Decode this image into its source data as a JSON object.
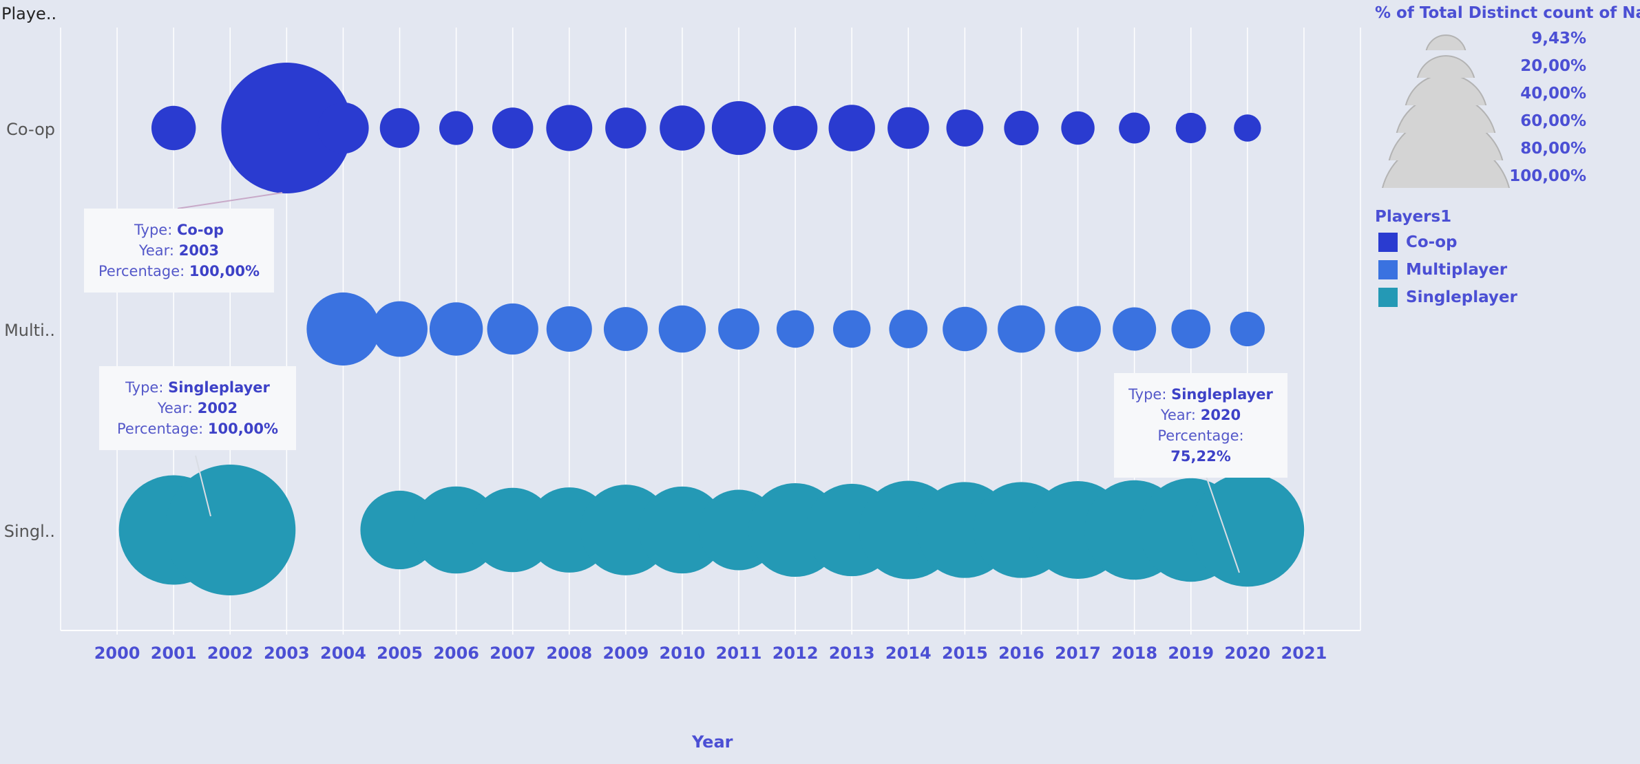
{
  "colors": {
    "background": "#e3e7f1",
    "coop": "#2a3bd0",
    "multiplayer": "#3a72e0",
    "singleplayer": "#2499b5",
    "axis_text": "#4b4fd4",
    "size_legend_fill": "#d4d4d4"
  },
  "header": {
    "row_title": "Playe.."
  },
  "chart_data": {
    "type": "scatter",
    "x_label": "Year",
    "x_ticks": [
      2000,
      2001,
      2002,
      2003,
      2004,
      2005,
      2006,
      2007,
      2008,
      2009,
      2010,
      2011,
      2012,
      2013,
      2014,
      2015,
      2016,
      2017,
      2018,
      2019,
      2020,
      2021
    ],
    "xlim": [
      1999,
      2022
    ],
    "rows": [
      "Co-op",
      "Multi..",
      "Singl.."
    ],
    "size_measure": "% of Total Distinct count of Name",
    "series": [
      {
        "name": "Co-op",
        "points": [
          {
            "year": 2001,
            "pct": 11.5
          },
          {
            "year": 2003,
            "pct": 100
          },
          {
            "year": 2004,
            "pct": 15.3
          },
          {
            "year": 2005,
            "pct": 9.2
          },
          {
            "year": 2006,
            "pct": 6.7
          },
          {
            "year": 2007,
            "pct": 9.8
          },
          {
            "year": 2008,
            "pct": 12.4
          },
          {
            "year": 2009,
            "pct": 9.8
          },
          {
            "year": 2010,
            "pct": 11.9
          },
          {
            "year": 2011,
            "pct": 17.0
          },
          {
            "year": 2012,
            "pct": 11.5
          },
          {
            "year": 2013,
            "pct": 12.6
          },
          {
            "year": 2014,
            "pct": 10.1
          },
          {
            "year": 2015,
            "pct": 8.0
          },
          {
            "year": 2016,
            "pct": 7.0
          },
          {
            "year": 2017,
            "pct": 6.5
          },
          {
            "year": 2018,
            "pct": 5.6
          },
          {
            "year": 2019,
            "pct": 5.4
          },
          {
            "year": 2020,
            "pct": 4.3
          }
        ]
      },
      {
        "name": "Multiplayer",
        "points": [
          {
            "year": 2004,
            "pct": 31.2
          },
          {
            "year": 2005,
            "pct": 18.1
          },
          {
            "year": 2006,
            "pct": 16.6
          },
          {
            "year": 2007,
            "pct": 15.3
          },
          {
            "year": 2008,
            "pct": 12.1
          },
          {
            "year": 2009,
            "pct": 11.3
          },
          {
            "year": 2010,
            "pct": 13.0
          },
          {
            "year": 2011,
            "pct": 9.9
          },
          {
            "year": 2012,
            "pct": 8.2
          },
          {
            "year": 2013,
            "pct": 8.2
          },
          {
            "year": 2014,
            "pct": 8.6
          },
          {
            "year": 2015,
            "pct": 11.5
          },
          {
            "year": 2016,
            "pct": 13.1
          },
          {
            "year": 2017,
            "pct": 12.3
          },
          {
            "year": 2018,
            "pct": 11.0
          },
          {
            "year": 2019,
            "pct": 8.9
          },
          {
            "year": 2020,
            "pct": 7.0
          }
        ]
      },
      {
        "name": "Singleplayer",
        "points": [
          {
            "year": 2001,
            "pct": 70.0
          },
          {
            "year": 2002,
            "pct": 100
          },
          {
            "year": 2005,
            "pct": 36.1
          },
          {
            "year": 2006,
            "pct": 44.4
          },
          {
            "year": 2007,
            "pct": 41.6
          },
          {
            "year": 2008,
            "pct": 42.5
          },
          {
            "year": 2009,
            "pct": 48.0
          },
          {
            "year": 2010,
            "pct": 44.2
          },
          {
            "year": 2011,
            "pct": 38.0
          },
          {
            "year": 2012,
            "pct": 51.3
          },
          {
            "year": 2013,
            "pct": 50.0
          },
          {
            "year": 2014,
            "pct": 56.7
          },
          {
            "year": 2015,
            "pct": 53.8
          },
          {
            "year": 2016,
            "pct": 53.8
          },
          {
            "year": 2017,
            "pct": 55.8
          },
          {
            "year": 2018,
            "pct": 57.8
          },
          {
            "year": 2019,
            "pct": 62.7
          },
          {
            "year": 2020,
            "pct": 75.22
          }
        ]
      }
    ]
  },
  "tooltips": [
    {
      "type_label": "Type:",
      "type": "Co-op",
      "year_label": "Year:",
      "year": "2003",
      "pct_label": "Percentage:",
      "pct": "100,00%"
    },
    {
      "type_label": "Type:",
      "type": "Singleplayer",
      "year_label": "Year:",
      "year": "2002",
      "pct_label": "Percentage:",
      "pct": "100,00%"
    },
    {
      "type_label": "Type:",
      "type": "Singleplayer",
      "year_label": "Year:",
      "year": "2020",
      "pct_label": "Percentage:",
      "pct": "75,22%"
    }
  ],
  "size_legend": {
    "title": "% of Total Distinct count of Name",
    "items": [
      {
        "label": "9,43%",
        "pct": 9.43
      },
      {
        "label": "20,00%",
        "pct": 20
      },
      {
        "label": "40,00%",
        "pct": 40
      },
      {
        "label": "60,00%",
        "pct": 60
      },
      {
        "label": "80,00%",
        "pct": 80
      },
      {
        "label": "100,00%",
        "pct": 100
      }
    ]
  },
  "color_legend": {
    "title": "Players1",
    "items": [
      {
        "label": "Co-op",
        "color": "#2a3bd0"
      },
      {
        "label": "Multiplayer",
        "color": "#3a72e0"
      },
      {
        "label": "Singleplayer",
        "color": "#2499b5"
      }
    ]
  }
}
